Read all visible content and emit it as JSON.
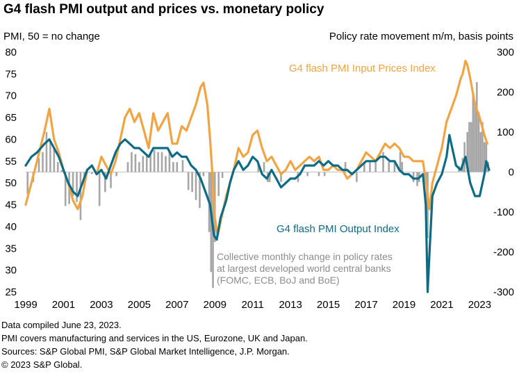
{
  "title": "G4 flash PMI output and prices vs. monetary policy",
  "footer": {
    "line1": "Data compiled June 23, 2023.",
    "line2": "PMI covers manufacturing and services in the US, Eurozone, UK and Japan.",
    "line3": "Sources: S&P Global PMI, S&P Global Market Intelligence, J.P. Morgan.",
    "line4": "© 2023 S&P Global."
  },
  "colors": {
    "input_prices": "#F0A443",
    "output": "#0E6B85",
    "policy": "#A6A6A6",
    "axis_text": "#000000"
  },
  "chart_data": {
    "type": "line",
    "left_axis": {
      "title": "PMI, 50 = no change",
      "min": 25,
      "max": 80,
      "ticks": [
        25,
        30,
        35,
        40,
        45,
        50,
        55,
        60,
        65,
        70,
        75,
        80
      ]
    },
    "right_axis": {
      "title": "Policy rate movement  m/m, basis points",
      "min": -300,
      "max": 300,
      "ticks": [
        -300,
        -200,
        -100,
        0,
        100,
        200,
        300
      ]
    },
    "x_axis": {
      "min": 1999.0,
      "max": 2023.5,
      "tick_labels": [
        "1999",
        "2001",
        "2003",
        "2005",
        "2007",
        "2009",
        "2011",
        "2013",
        "2015",
        "2017",
        "2019",
        "2021",
        "2023"
      ]
    },
    "annotations": {
      "input_label": "G4 flash PMI Input Prices Index",
      "output_label": "G4 flash PMI Output  Index",
      "policy_note": [
        "Collective monthly change in policy rates",
        "at largest developed world central banks",
        "(FOMC, ECB, BoJ and BoE)"
      ]
    },
    "series": [
      {
        "name": "G4 flash PMI Input Prices Index",
        "axis": "left",
        "points": [
          [
            1999.0,
            45
          ],
          [
            1999.3,
            50
          ],
          [
            1999.6,
            55
          ],
          [
            2000.0,
            62
          ],
          [
            2000.25,
            67
          ],
          [
            2000.5,
            60
          ],
          [
            2000.75,
            57
          ],
          [
            2001.0,
            53
          ],
          [
            2001.25,
            50
          ],
          [
            2001.5,
            46
          ],
          [
            2001.75,
            44
          ],
          [
            2002.0,
            47
          ],
          [
            2002.25,
            53
          ],
          [
            2002.5,
            54
          ],
          [
            2002.75,
            52
          ],
          [
            2003.0,
            56
          ],
          [
            2003.25,
            54
          ],
          [
            2003.5,
            52
          ],
          [
            2003.75,
            55
          ],
          [
            2004.0,
            60
          ],
          [
            2004.25,
            65
          ],
          [
            2004.5,
            67
          ],
          [
            2004.75,
            64
          ],
          [
            2005.0,
            66
          ],
          [
            2005.25,
            62
          ],
          [
            2005.5,
            58
          ],
          [
            2005.75,
            66
          ],
          [
            2006.0,
            62
          ],
          [
            2006.25,
            64
          ],
          [
            2006.5,
            66
          ],
          [
            2006.75,
            59
          ],
          [
            2007.0,
            59
          ],
          [
            2007.25,
            63
          ],
          [
            2007.5,
            62
          ],
          [
            2007.75,
            65
          ],
          [
            2008.0,
            68
          ],
          [
            2008.25,
            72
          ],
          [
            2008.4,
            73
          ],
          [
            2008.6,
            68
          ],
          [
            2008.75,
            60
          ],
          [
            2008.9,
            50
          ],
          [
            2009.0,
            42
          ],
          [
            2009.15,
            38
          ],
          [
            2009.35,
            42
          ],
          [
            2009.6,
            47
          ],
          [
            2009.8,
            50
          ],
          [
            2010.0,
            53
          ],
          [
            2010.25,
            58
          ],
          [
            2010.5,
            56
          ],
          [
            2010.75,
            57
          ],
          [
            2011.0,
            61
          ],
          [
            2011.25,
            62
          ],
          [
            2011.5,
            58
          ],
          [
            2011.75,
            55
          ],
          [
            2012.0,
            56
          ],
          [
            2012.25,
            54
          ],
          [
            2012.5,
            52
          ],
          [
            2012.75,
            53
          ],
          [
            2013.0,
            55
          ],
          [
            2013.25,
            53
          ],
          [
            2013.5,
            54
          ],
          [
            2013.75,
            55
          ],
          [
            2014.0,
            56
          ],
          [
            2014.25,
            55
          ],
          [
            2014.5,
            56
          ],
          [
            2014.75,
            53
          ],
          [
            2015.0,
            53
          ],
          [
            2015.25,
            54
          ],
          [
            2015.5,
            53
          ],
          [
            2015.75,
            53
          ],
          [
            2016.0,
            51
          ],
          [
            2016.25,
            52
          ],
          [
            2016.5,
            53
          ],
          [
            2016.75,
            55
          ],
          [
            2017.0,
            57
          ],
          [
            2017.25,
            56
          ],
          [
            2017.5,
            55
          ],
          [
            2017.75,
            57
          ],
          [
            2018.0,
            59
          ],
          [
            2018.25,
            58
          ],
          [
            2018.5,
            59
          ],
          [
            2018.75,
            58
          ],
          [
            2019.0,
            56
          ],
          [
            2019.25,
            56
          ],
          [
            2019.5,
            55
          ],
          [
            2019.75,
            55
          ],
          [
            2020.0,
            55
          ],
          [
            2020.2,
            49
          ],
          [
            2020.35,
            44
          ],
          [
            2020.5,
            50
          ],
          [
            2020.75,
            54
          ],
          [
            2021.0,
            58
          ],
          [
            2021.25,
            64
          ],
          [
            2021.5,
            67
          ],
          [
            2021.75,
            70
          ],
          [
            2022.0,
            74
          ],
          [
            2022.1,
            75
          ],
          [
            2022.25,
            78
          ],
          [
            2022.35,
            77
          ],
          [
            2022.5,
            74
          ],
          [
            2022.75,
            68
          ],
          [
            2023.0,
            65
          ],
          [
            2023.25,
            61
          ],
          [
            2023.4,
            59
          ]
        ]
      },
      {
        "name": "G4 flash PMI Output  Index",
        "axis": "left",
        "points": [
          [
            1999.0,
            54
          ],
          [
            1999.3,
            56
          ],
          [
            1999.6,
            57
          ],
          [
            2000.0,
            59
          ],
          [
            2000.25,
            60
          ],
          [
            2000.5,
            58
          ],
          [
            2000.75,
            56
          ],
          [
            2001.0,
            53
          ],
          [
            2001.25,
            50
          ],
          [
            2001.5,
            48
          ],
          [
            2001.75,
            47
          ],
          [
            2002.0,
            50
          ],
          [
            2002.25,
            53
          ],
          [
            2002.5,
            54
          ],
          [
            2002.75,
            52
          ],
          [
            2003.0,
            53
          ],
          [
            2003.25,
            51
          ],
          [
            2003.5,
            54
          ],
          [
            2003.75,
            57
          ],
          [
            2004.0,
            59
          ],
          [
            2004.25,
            60
          ],
          [
            2004.5,
            59
          ],
          [
            2004.75,
            58
          ],
          [
            2005.0,
            58
          ],
          [
            2005.25,
            57
          ],
          [
            2005.5,
            56
          ],
          [
            2005.75,
            58
          ],
          [
            2006.0,
            58
          ],
          [
            2006.25,
            58
          ],
          [
            2006.5,
            58
          ],
          [
            2006.75,
            56
          ],
          [
            2007.0,
            57
          ],
          [
            2007.25,
            56
          ],
          [
            2007.5,
            56
          ],
          [
            2007.75,
            54
          ],
          [
            2008.0,
            53
          ],
          [
            2008.25,
            51
          ],
          [
            2008.5,
            48
          ],
          [
            2008.75,
            45
          ],
          [
            2008.95,
            38
          ],
          [
            2009.1,
            37
          ],
          [
            2009.3,
            42
          ],
          [
            2009.6,
            46
          ],
          [
            2009.8,
            50
          ],
          [
            2010.0,
            53
          ],
          [
            2010.25,
            55
          ],
          [
            2010.5,
            53
          ],
          [
            2010.75,
            54
          ],
          [
            2011.0,
            56
          ],
          [
            2011.25,
            55
          ],
          [
            2011.5,
            52
          ],
          [
            2011.75,
            51
          ],
          [
            2012.0,
            53
          ],
          [
            2012.25,
            51
          ],
          [
            2012.5,
            49
          ],
          [
            2012.75,
            50
          ],
          [
            2013.0,
            51
          ],
          [
            2013.25,
            51
          ],
          [
            2013.5,
            52
          ],
          [
            2013.75,
            54
          ],
          [
            2014.0,
            54
          ],
          [
            2014.25,
            54
          ],
          [
            2014.5,
            55
          ],
          [
            2014.75,
            54
          ],
          [
            2015.0,
            55
          ],
          [
            2015.25,
            54
          ],
          [
            2015.5,
            54
          ],
          [
            2015.75,
            53
          ],
          [
            2016.0,
            53
          ],
          [
            2016.25,
            52
          ],
          [
            2016.5,
            53
          ],
          [
            2016.75,
            54
          ],
          [
            2017.0,
            55
          ],
          [
            2017.25,
            55
          ],
          [
            2017.5,
            55
          ],
          [
            2017.75,
            56
          ],
          [
            2018.0,
            56
          ],
          [
            2018.25,
            55
          ],
          [
            2018.5,
            55
          ],
          [
            2018.75,
            53
          ],
          [
            2019.0,
            52
          ],
          [
            2019.25,
            52
          ],
          [
            2019.5,
            51
          ],
          [
            2019.75,
            51
          ],
          [
            2020.0,
            52
          ],
          [
            2020.15,
            45
          ],
          [
            2020.25,
            25
          ],
          [
            2020.35,
            34
          ],
          [
            2020.5,
            47
          ],
          [
            2020.75,
            50
          ],
          [
            2021.0,
            52
          ],
          [
            2021.25,
            56
          ],
          [
            2021.4,
            61
          ],
          [
            2021.6,
            57
          ],
          [
            2021.75,
            54
          ],
          [
            2022.0,
            53
          ],
          [
            2022.25,
            56
          ],
          [
            2022.5,
            50
          ],
          [
            2022.75,
            47
          ],
          [
            2023.0,
            47
          ],
          [
            2023.25,
            52
          ],
          [
            2023.35,
            55
          ],
          [
            2023.5,
            53
          ]
        ]
      },
      {
        "name": "Collective monthly change in policy rates",
        "axis": "right",
        "type": "bar",
        "points": [
          [
            1999.1,
            -55
          ],
          [
            1999.4,
            -25
          ],
          [
            1999.7,
            35
          ],
          [
            1999.9,
            50
          ],
          [
            2000.1,
            100
          ],
          [
            2000.3,
            75
          ],
          [
            2000.5,
            60
          ],
          [
            2000.7,
            25
          ],
          [
            2000.9,
            5
          ],
          [
            2001.1,
            -85
          ],
          [
            2001.3,
            -80
          ],
          [
            2001.5,
            -60
          ],
          [
            2001.7,
            -75
          ],
          [
            2001.9,
            -120
          ],
          [
            2002.1,
            -35
          ],
          [
            2002.5,
            -5
          ],
          [
            2002.9,
            -85
          ],
          [
            2003.2,
            -50
          ],
          [
            2003.5,
            -40
          ],
          [
            2003.8,
            -10
          ],
          [
            2004.4,
            25
          ],
          [
            2004.6,
            50
          ],
          [
            2004.8,
            45
          ],
          [
            2005.0,
            25
          ],
          [
            2005.2,
            40
          ],
          [
            2005.4,
            45
          ],
          [
            2005.6,
            45
          ],
          [
            2005.8,
            55
          ],
          [
            2006.0,
            50
          ],
          [
            2006.2,
            50
          ],
          [
            2006.4,
            40
          ],
          [
            2006.6,
            50
          ],
          [
            2006.8,
            25
          ],
          [
            2007.0,
            25
          ],
          [
            2007.3,
            30
          ],
          [
            2007.6,
            -45
          ],
          [
            2007.8,
            -50
          ],
          [
            2008.0,
            -70
          ],
          [
            2008.2,
            -90
          ],
          [
            2008.4,
            -10
          ],
          [
            2008.7,
            -150
          ],
          [
            2008.8,
            -250
          ],
          [
            2008.9,
            -290
          ],
          [
            2009.0,
            -175
          ],
          [
            2009.2,
            -60
          ],
          [
            2009.4,
            -15
          ],
          [
            2011.3,
            25
          ],
          [
            2011.6,
            25
          ],
          [
            2011.8,
            -25
          ],
          [
            2011.9,
            -25
          ],
          [
            2012.5,
            -25
          ],
          [
            2013.4,
            -25
          ],
          [
            2013.9,
            -10
          ],
          [
            2014.5,
            -10
          ],
          [
            2014.8,
            -10
          ],
          [
            2015.9,
            25
          ],
          [
            2016.5,
            -25
          ],
          [
            2016.9,
            25
          ],
          [
            2017.2,
            25
          ],
          [
            2017.5,
            25
          ],
          [
            2017.9,
            50
          ],
          [
            2018.2,
            25
          ],
          [
            2018.5,
            25
          ],
          [
            2018.8,
            50
          ],
          [
            2018.9,
            25
          ],
          [
            2019.5,
            -25
          ],
          [
            2019.7,
            -35
          ],
          [
            2019.8,
            -25
          ],
          [
            2020.2,
            -150
          ],
          [
            2020.25,
            -165
          ],
          [
            2021.9,
            15
          ],
          [
            2022.1,
            35
          ],
          [
            2022.2,
            75
          ],
          [
            2022.35,
            100
          ],
          [
            2022.45,
            125
          ],
          [
            2022.55,
            125
          ],
          [
            2022.65,
            200
          ],
          [
            2022.75,
            175
          ],
          [
            2022.85,
            225
          ],
          [
            2022.95,
            150
          ],
          [
            2023.05,
            100
          ],
          [
            2023.15,
            125
          ],
          [
            2023.25,
            75
          ],
          [
            2023.35,
            75
          ],
          [
            2023.45,
            25
          ]
        ]
      }
    ]
  }
}
